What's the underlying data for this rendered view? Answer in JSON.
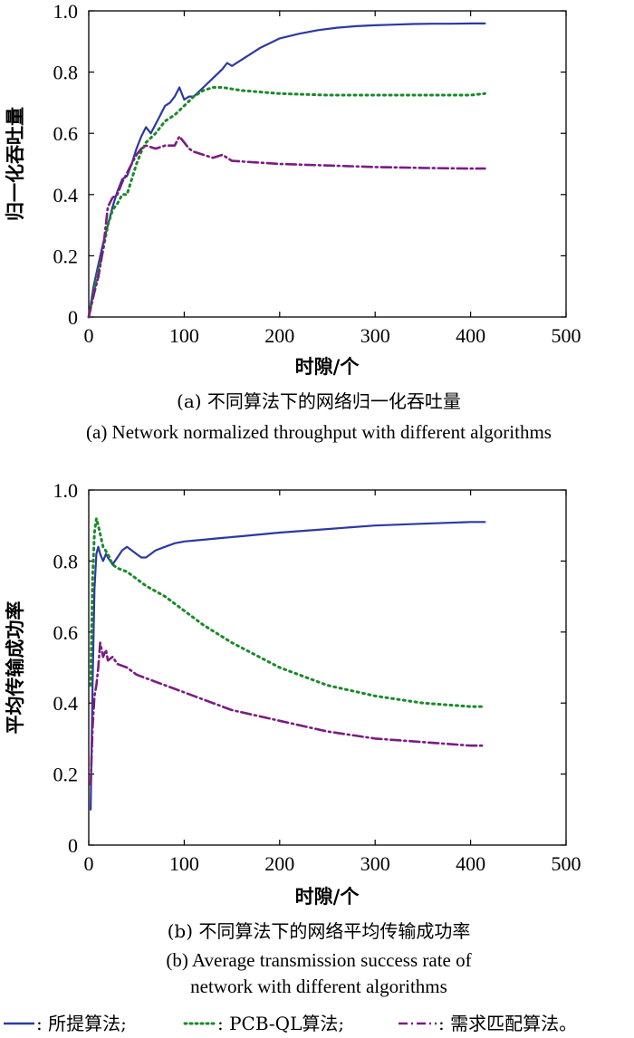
{
  "chart_data": [
    {
      "type": "line",
      "caption_zh": "(a) 不同算法下的网络归一化吞吐量",
      "caption_en": "(a) Network normalized throughput with different algorithms",
      "xlabel": "时隙/个",
      "ylabel": "归一化吞吐量",
      "xlim": [
        0,
        500
      ],
      "ylim": [
        0,
        1.0
      ],
      "xticks": [
        "0",
        "100",
        "200",
        "300",
        "400",
        "500"
      ],
      "yticks": [
        "0",
        "0.2",
        "0.4",
        "0.6",
        "0.8",
        "1.0"
      ],
      "grid": false,
      "series": [
        {
          "color": "#2b3aa0",
          "style": "solid",
          "x": [
            0,
            5,
            10,
            15,
            20,
            25,
            30,
            35,
            40,
            45,
            50,
            55,
            60,
            65,
            70,
            75,
            80,
            85,
            90,
            95,
            100,
            105,
            110,
            120,
            130,
            140,
            145,
            150,
            160,
            170,
            180,
            190,
            200,
            220,
            240,
            260,
            280,
            300,
            320,
            340,
            360,
            380,
            400,
            415
          ],
          "y": [
            0.0,
            0.1,
            0.17,
            0.24,
            0.3,
            0.36,
            0.41,
            0.45,
            0.46,
            0.5,
            0.55,
            0.59,
            0.62,
            0.6,
            0.63,
            0.66,
            0.69,
            0.7,
            0.72,
            0.75,
            0.71,
            0.72,
            0.72,
            0.75,
            0.78,
            0.81,
            0.83,
            0.82,
            0.84,
            0.86,
            0.88,
            0.895,
            0.91,
            0.925,
            0.937,
            0.945,
            0.95,
            0.953,
            0.955,
            0.957,
            0.958,
            0.958,
            0.959,
            0.959
          ]
        },
        {
          "color": "#1a8a2a",
          "style": "dotted",
          "x": [
            0,
            5,
            10,
            15,
            20,
            25,
            30,
            35,
            40,
            45,
            50,
            55,
            60,
            70,
            80,
            90,
            100,
            110,
            120,
            130,
            140,
            160,
            180,
            200,
            250,
            300,
            350,
            400,
            415
          ],
          "y": [
            0.0,
            0.08,
            0.15,
            0.22,
            0.3,
            0.35,
            0.37,
            0.4,
            0.4,
            0.45,
            0.5,
            0.54,
            0.57,
            0.6,
            0.64,
            0.66,
            0.69,
            0.72,
            0.74,
            0.75,
            0.75,
            0.74,
            0.735,
            0.73,
            0.725,
            0.725,
            0.725,
            0.725,
            0.73
          ]
        },
        {
          "color": "#7a1d82",
          "style": "dashdot",
          "x": [
            0,
            5,
            10,
            15,
            20,
            25,
            30,
            35,
            40,
            45,
            50,
            55,
            60,
            70,
            80,
            90,
            95,
            100,
            105,
            110,
            120,
            130,
            140,
            150,
            175,
            200,
            250,
            300,
            350,
            400,
            415
          ],
          "y": [
            0.0,
            0.07,
            0.13,
            0.22,
            0.36,
            0.39,
            0.4,
            0.44,
            0.47,
            0.5,
            0.53,
            0.55,
            0.56,
            0.55,
            0.56,
            0.56,
            0.59,
            0.57,
            0.55,
            0.54,
            0.53,
            0.52,
            0.53,
            0.51,
            0.505,
            0.5,
            0.495,
            0.49,
            0.487,
            0.485,
            0.485
          ]
        }
      ]
    },
    {
      "type": "line",
      "caption_zh": "(b) 不同算法下的网络平均传输成功率",
      "caption_en_line1": "(b) Average transmission success rate of",
      "caption_en_line2": "network with different algorithms",
      "xlabel": "时隙/个",
      "ylabel": "平均传输成功率",
      "xlim": [
        0,
        500
      ],
      "ylim": [
        0,
        1.0
      ],
      "xticks": [
        "0",
        "100",
        "200",
        "300",
        "400",
        "500"
      ],
      "yticks": [
        "0",
        "0.2",
        "0.4",
        "0.6",
        "0.8",
        "1.0"
      ],
      "grid": false,
      "series": [
        {
          "color": "#2b3aa0",
          "style": "solid",
          "x": [
            2,
            4,
            6,
            8,
            10,
            12,
            15,
            18,
            20,
            25,
            30,
            35,
            40,
            45,
            50,
            55,
            60,
            70,
            80,
            90,
            100,
            120,
            140,
            160,
            200,
            250,
            300,
            350,
            400,
            415
          ],
          "y": [
            0.1,
            0.45,
            0.72,
            0.82,
            0.84,
            0.82,
            0.8,
            0.82,
            0.81,
            0.79,
            0.81,
            0.83,
            0.84,
            0.83,
            0.82,
            0.81,
            0.81,
            0.83,
            0.84,
            0.85,
            0.855,
            0.86,
            0.865,
            0.87,
            0.88,
            0.89,
            0.9,
            0.905,
            0.91,
            0.91
          ]
        },
        {
          "color": "#1a8a2a",
          "style": "dotted",
          "x": [
            2,
            4,
            6,
            8,
            10,
            15,
            20,
            25,
            30,
            40,
            50,
            60,
            80,
            100,
            120,
            150,
            200,
            250,
            300,
            350,
            400,
            415
          ],
          "y": [
            0.45,
            0.75,
            0.88,
            0.92,
            0.9,
            0.84,
            0.82,
            0.79,
            0.78,
            0.77,
            0.75,
            0.73,
            0.7,
            0.66,
            0.62,
            0.57,
            0.5,
            0.45,
            0.42,
            0.4,
            0.39,
            0.39
          ]
        },
        {
          "color": "#7a1d82",
          "style": "dashdot",
          "x": [
            2,
            4,
            6,
            8,
            10,
            12,
            15,
            18,
            20,
            25,
            30,
            40,
            50,
            60,
            80,
            100,
            120,
            150,
            200,
            250,
            300,
            350,
            400,
            415
          ],
          "y": [
            0.17,
            0.33,
            0.42,
            0.45,
            0.5,
            0.57,
            0.53,
            0.55,
            0.52,
            0.53,
            0.51,
            0.5,
            0.48,
            0.47,
            0.45,
            0.43,
            0.41,
            0.38,
            0.35,
            0.32,
            0.3,
            0.29,
            0.28,
            0.28
          ]
        }
      ]
    }
  ],
  "legend": {
    "placement": "bottom",
    "entries": [
      {
        "label": ": 所提算法;",
        "color": "#2b3aa0",
        "style": "solid"
      },
      {
        "label": ": PCB-QL算法;",
        "color": "#1a8a2a",
        "style": "dotted"
      },
      {
        "label": ": 需求匹配算法。",
        "color": "#7a1d82",
        "style": "dashdot"
      }
    ]
  }
}
